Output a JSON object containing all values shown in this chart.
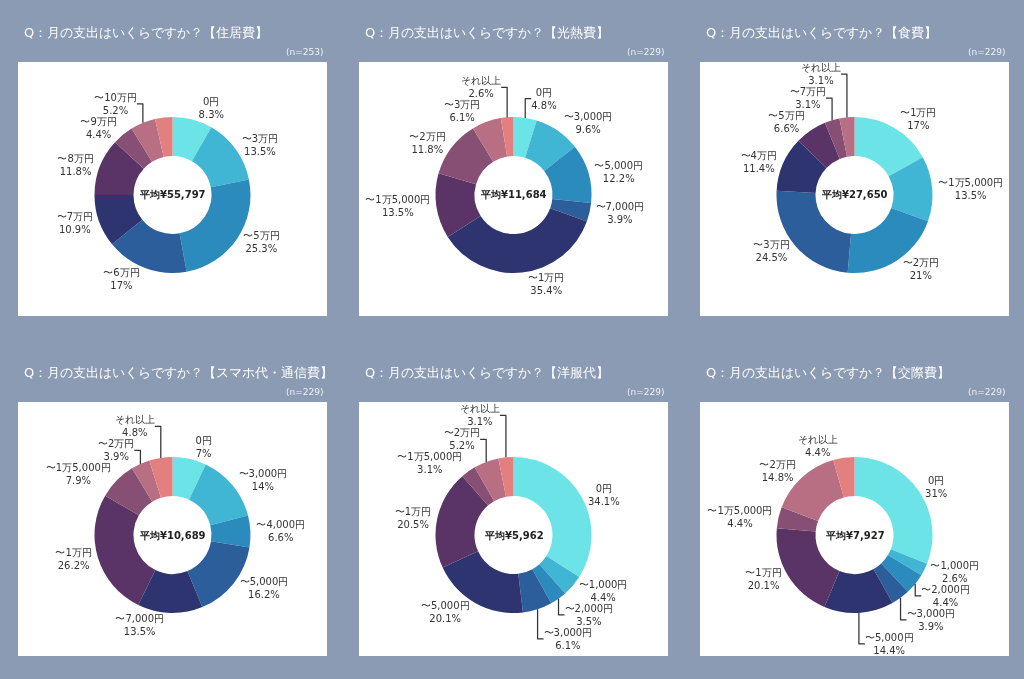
{
  "chart_data": [
    {
      "type": "donut",
      "title": "Q：月の支出はいくらですか？【住居費】",
      "subtitle": "(n=253)",
      "annotations": [
        "平均¥55,797"
      ],
      "categories": [
        "0円",
        "〜3万円",
        "〜5万円",
        "〜6万円",
        "〜7万円",
        "〜8万円",
        "〜9万円",
        "〜10万円",
        null
      ],
      "values": [
        8.3,
        13.5,
        25.3,
        17,
        10.9,
        11.8,
        4.4,
        5.2,
        3.6
      ],
      "value_labels": [
        "8.3%",
        "13.5%",
        "25.3%",
        "17%",
        "10.9%",
        "11.8%",
        "4.4%",
        "5.2%",
        null
      ],
      "colors": [
        "#6ce3e6",
        "#41b6d4",
        "#2b8bbd",
        "#2b5e9a",
        "#2e3470",
        "#5a3466",
        "#874f73",
        "#b86f84",
        "#e47f80"
      ]
    },
    {
      "type": "donut",
      "title": "Q：月の支出はいくらですか？【光熱費】",
      "subtitle": "(n=229)",
      "annotations": [
        "平均¥11,684"
      ],
      "categories": [
        "0円",
        "〜3,000円",
        "〜5,000円",
        "〜7,000円",
        "〜1万円",
        "〜1万5,000円",
        "〜2万円",
        "〜3万円",
        "それ以上"
      ],
      "values": [
        4.8,
        9.6,
        12.2,
        3.9,
        35.4,
        13.5,
        11.8,
        6.1,
        2.6
      ],
      "value_labels": [
        "4.8%",
        "9.6%",
        "12.2%",
        "3.9%",
        "35.4%",
        "13.5%",
        "11.8%",
        "6.1%",
        "2.6%"
      ],
      "colors": [
        "#6ce3e6",
        "#41b6d4",
        "#2b8bbd",
        "#2b5e9a",
        "#2e3470",
        "#5a3466",
        "#874f73",
        "#b86f84",
        "#e47f80"
      ]
    },
    {
      "type": "donut",
      "title": "Q：月の支出はいくらですか？【食費】",
      "subtitle": "(n=229)",
      "annotations": [
        "平均¥27,650"
      ],
      "categories": [
        "〜1万円",
        "〜1万5,000円",
        "〜2万円",
        "〜3万円",
        "〜4万円",
        "〜5万円",
        "〜7万円",
        "それ以上"
      ],
      "values": [
        17,
        13.5,
        21,
        24.5,
        11.4,
        6.6,
        3.1,
        3.1
      ],
      "value_labels": [
        "17%",
        "13.5%",
        "21%",
        "24.5%",
        "11.4%",
        "6.6%",
        "3.1%",
        "3.1%"
      ],
      "colors": [
        "#6ce3e6",
        "#41b6d4",
        "#2b8bbd",
        "#2b5e9a",
        "#2e3470",
        "#5a3466",
        "#874f73",
        "#b86f84"
      ]
    },
    {
      "type": "donut",
      "title": "Q：月の支出はいくらですか？【スマホ代・通信費】",
      "subtitle": "(n=229)",
      "annotations": [
        "平均¥10,689"
      ],
      "categories": [
        "0円",
        "〜3,000円",
        "〜4,000円",
        "〜5,000円",
        "〜7,000円",
        "〜1万円",
        "〜1万5,000円",
        "〜2万円",
        "それ以上"
      ],
      "values": [
        7,
        14,
        6.6,
        16.2,
        13.5,
        26.2,
        7.9,
        3.9,
        4.8
      ],
      "value_labels": [
        "7%",
        "14%",
        "6.6%",
        "16.2%",
        "13.5%",
        "26.2%",
        "7.9%",
        "3.9%",
        "4.8%"
      ],
      "colors": [
        "#6ce3e6",
        "#41b6d4",
        "#2b8bbd",
        "#2b5e9a",
        "#2e3470",
        "#5a3466",
        "#874f73",
        "#b86f84",
        "#e47f80"
      ]
    },
    {
      "type": "donut",
      "title": "Q：月の支出はいくらですか？【洋服代】",
      "subtitle": "(n=229)",
      "annotations": [
        "平均¥5,962"
      ],
      "categories": [
        "0円",
        "〜1,000円",
        "〜2,000円",
        "〜3,000円",
        "〜5,000円",
        "〜1万円",
        "〜1万5,000円",
        "〜2万円",
        "それ以上"
      ],
      "values": [
        34.1,
        4.4,
        3.5,
        6.1,
        20.1,
        20.5,
        3.1,
        5.2,
        3.1
      ],
      "value_labels": [
        "34.1%",
        "4.4%",
        "3.5%",
        "6.1%",
        "20.1%",
        "20.5%",
        "3.1%",
        "5.2%",
        "3.1%"
      ],
      "colors": [
        "#6ce3e6",
        "#41b6d4",
        "#2b8bbd",
        "#2b5e9a",
        "#2e3470",
        "#5a3466",
        "#874f73",
        "#b86f84",
        "#e47f80"
      ]
    },
    {
      "type": "donut",
      "title": "Q：月の支出はいくらですか？【交際費】",
      "subtitle": "(n=229)",
      "annotations": [
        "平均¥7,927"
      ],
      "categories": [
        "0円",
        "〜1,000円",
        "〜2,000円",
        "〜3,000円",
        "〜5,000円",
        "〜1万円",
        "〜1万5,000円",
        "〜2万円",
        "それ以上"
      ],
      "values": [
        31,
        2.6,
        4.4,
        3.9,
        14.4,
        20.1,
        4.4,
        14.8,
        4.4
      ],
      "value_labels": [
        "31%",
        "2.6%",
        "4.4%",
        "3.9%",
        "14.4%",
        "20.1%",
        "4.4%",
        "14.8%",
        "4.4%"
      ],
      "colors": [
        "#6ce3e6",
        "#41b6d4",
        "#2b8bbd",
        "#2b5e9a",
        "#2e3470",
        "#5a3466",
        "#874f73",
        "#b86f84",
        "#e47f80"
      ]
    }
  ]
}
